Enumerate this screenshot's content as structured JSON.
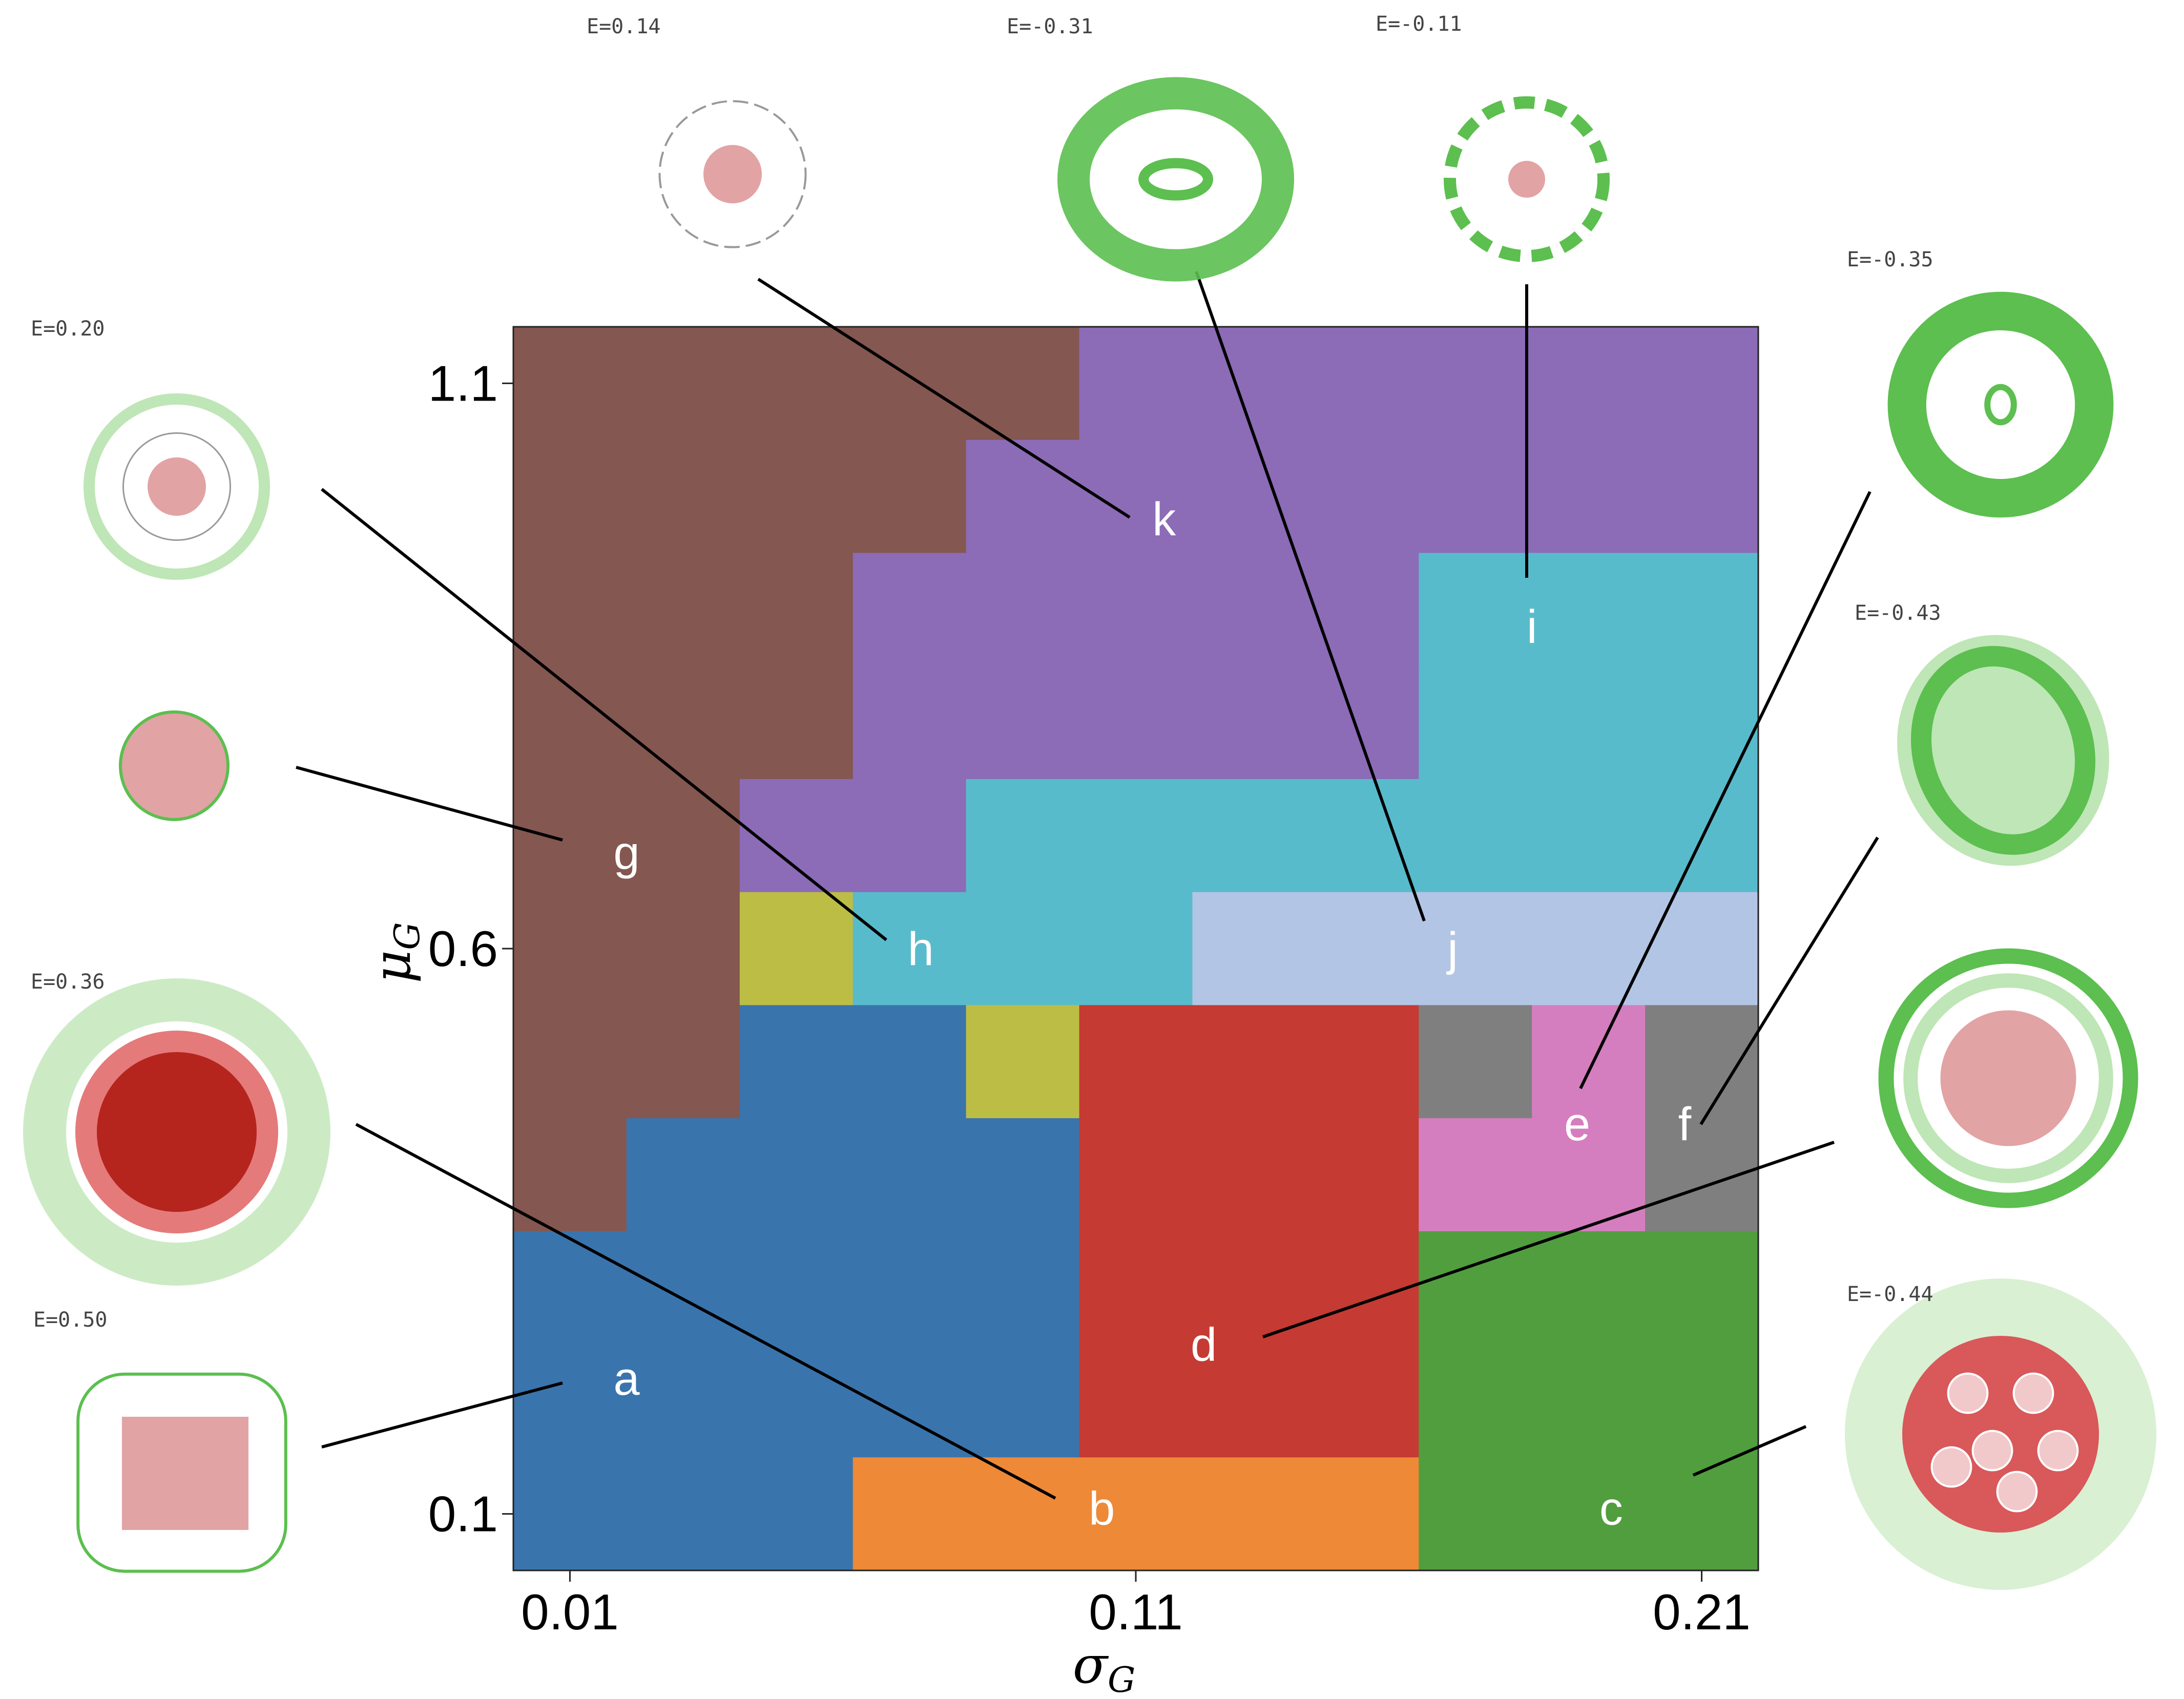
{
  "chart_data": {
    "type": "heatmap",
    "x_axis": {
      "label_main": "σ",
      "label_sub": "G",
      "range": [
        0.0,
        0.22
      ],
      "ticks": [
        0.01,
        0.11,
        0.21
      ],
      "tick_labels": [
        "0.01",
        "0.11",
        "0.21"
      ]
    },
    "y_axis": {
      "label_main": "μ",
      "label_sub": "G",
      "range": [
        0.05,
        1.15
      ],
      "ticks": [
        0.1,
        0.6,
        1.1
      ],
      "tick_labels": [
        "0.1",
        "0.6",
        "1.1"
      ]
    },
    "grid": false,
    "x_categories": [
      0.01,
      0.03,
      0.05,
      0.07,
      0.09,
      0.11,
      0.13,
      0.15,
      0.17,
      0.19,
      0.21
    ],
    "y_categories": [
      1.1,
      1.0,
      0.9,
      0.8,
      0.7,
      0.6,
      0.5,
      0.4,
      0.3,
      0.2,
      0.1
    ],
    "grid_classes": [
      "gggggkkkkkk",
      "ggggkkkkkkk",
      "gggkkkkkiii",
      "gggkkkkkiii",
      "ggkkiiiiiii",
      "gghiiijjjjj",
      "ggbbhdddfef",
      "gbbbbdddeef",
      "bbbbbdddccc",
      "bbbbbdddccc",
      "bbbbbbbbccc"
    ],
    "class_colors": {
      "a": "#3a74ad",
      "b": "#3a74ad",
      "o": "#ee8937",
      "c": "#519e3e",
      "d": "#c53a32",
      "e": "#d57ebf",
      "f": "#7f7f7f",
      "g": "#845750",
      "h": "#bcbd45",
      "i": "#58bbcc",
      "j": "#b3c5e5",
      "k": "#8c6bb7"
    },
    "orange_row_override": {
      "y": 0.1,
      "x_from": 0.07,
      "x_to": 0.15,
      "class": "o"
    },
    "region_labels": [
      {
        "text": "a",
        "x": 0.02,
        "y": 0.22
      },
      {
        "text": "b",
        "x": 0.104,
        "y": 0.105
      },
      {
        "text": "c",
        "x": 0.194,
        "y": 0.105
      },
      {
        "text": "d",
        "x": 0.122,
        "y": 0.25
      },
      {
        "text": "e",
        "x": 0.188,
        "y": 0.445
      },
      {
        "text": "f",
        "x": 0.207,
        "y": 0.445
      },
      {
        "text": "g",
        "x": 0.02,
        "y": 0.685
      },
      {
        "text": "h",
        "x": 0.072,
        "y": 0.6
      },
      {
        "text": "i",
        "x": 0.18,
        "y": 0.885
      },
      {
        "text": "j",
        "x": 0.166,
        "y": 0.6
      },
      {
        "text": "k",
        "x": 0.115,
        "y": 0.98
      }
    ]
  },
  "thumbnails": [
    {
      "id": "g-top",
      "energy": "E=0.20",
      "style": "ring-small"
    },
    {
      "id": "g",
      "energy": "",
      "style": "blob-pink"
    },
    {
      "id": "b",
      "energy": "E=0.36",
      "style": "blob-red"
    },
    {
      "id": "a",
      "energy": "E=0.50",
      "style": "square-outline"
    },
    {
      "id": "k",
      "energy": "E=0.14",
      "style": "star"
    },
    {
      "id": "j",
      "energy": "E=-0.31",
      "style": "green-ring"
    },
    {
      "id": "i",
      "energy": "E=-0.11",
      "style": "green-star"
    },
    {
      "id": "e",
      "energy": "E=-0.35",
      "style": "green-cells"
    },
    {
      "id": "f",
      "energy": "E=-0.43",
      "style": "green-oval"
    },
    {
      "id": "d",
      "energy": "",
      "style": "ring-pink"
    },
    {
      "id": "c",
      "energy": "E=-0.44",
      "style": "red-cluster"
    }
  ]
}
